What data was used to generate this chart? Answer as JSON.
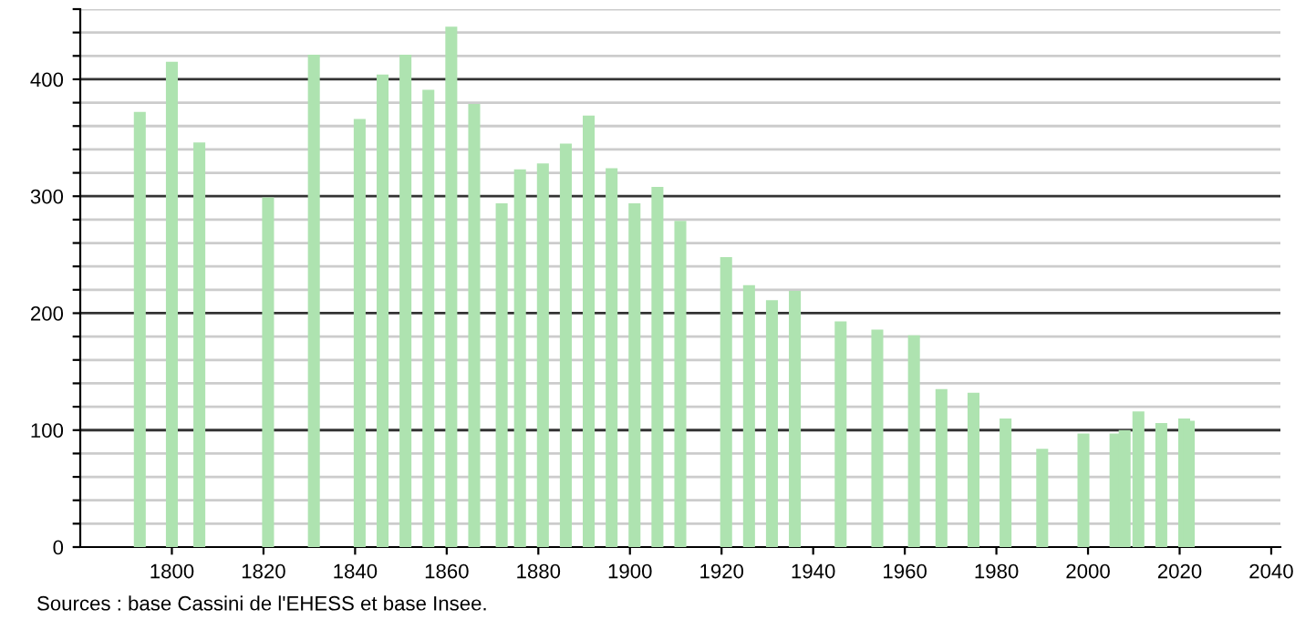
{
  "chart_data": {
    "type": "bar",
    "x": [
      1793,
      1800,
      1806,
      1821,
      1831,
      1841,
      1846,
      1851,
      1856,
      1861,
      1866,
      1872,
      1876,
      1881,
      1886,
      1891,
      1896,
      1901,
      1906,
      1911,
      1921,
      1926,
      1931,
      1936,
      1946,
      1954,
      1962,
      1968,
      1975,
      1982,
      1990,
      1999,
      2006,
      2008,
      2011,
      2016,
      2021,
      2022
    ],
    "values": [
      372,
      415,
      346,
      299,
      421,
      366,
      404,
      421,
      391,
      445,
      379,
      294,
      323,
      328,
      345,
      369,
      324,
      294,
      308,
      279,
      248,
      224,
      211,
      219,
      193,
      186,
      181,
      135,
      132,
      110,
      84,
      97,
      97,
      100,
      116,
      106,
      110,
      108
    ],
    "color": "#aee3b0",
    "xlim": [
      1780,
      2042
    ],
    "xticks": [
      1800,
      1820,
      1840,
      1860,
      1880,
      1900,
      1920,
      1940,
      1960,
      1980,
      2000,
      2020,
      2040
    ],
    "ylim": [
      0,
      460
    ],
    "yticks": [
      0,
      {
        "value": 20,
        "label": null
      },
      {
        "value": 40,
        "label": null
      },
      {
        "value": 60,
        "label": null
      },
      {
        "value": 80,
        "label": null
      },
      100,
      {
        "value": 120,
        "label": null
      },
      {
        "value": 140,
        "label": null
      },
      {
        "value": 160,
        "label": null
      },
      {
        "value": 180,
        "label": null
      },
      200,
      {
        "value": 220,
        "label": null
      },
      {
        "value": 240,
        "label": null
      },
      {
        "value": 260,
        "label": null
      },
      {
        "value": 280,
        "label": null
      },
      300,
      {
        "value": 320,
        "label": null
      },
      {
        "value": 340,
        "label": null
      },
      {
        "value": 360,
        "label": null
      },
      {
        "value": 380,
        "label": null
      },
      400,
      {
        "value": 420,
        "label": null
      },
      {
        "value": 440,
        "label": null
      },
      {
        "value": 460,
        "label": null
      }
    ],
    "grid": "y",
    "annotations": [
      "Sources : base Cassini de l'EHESS et base Insee."
    ]
  }
}
